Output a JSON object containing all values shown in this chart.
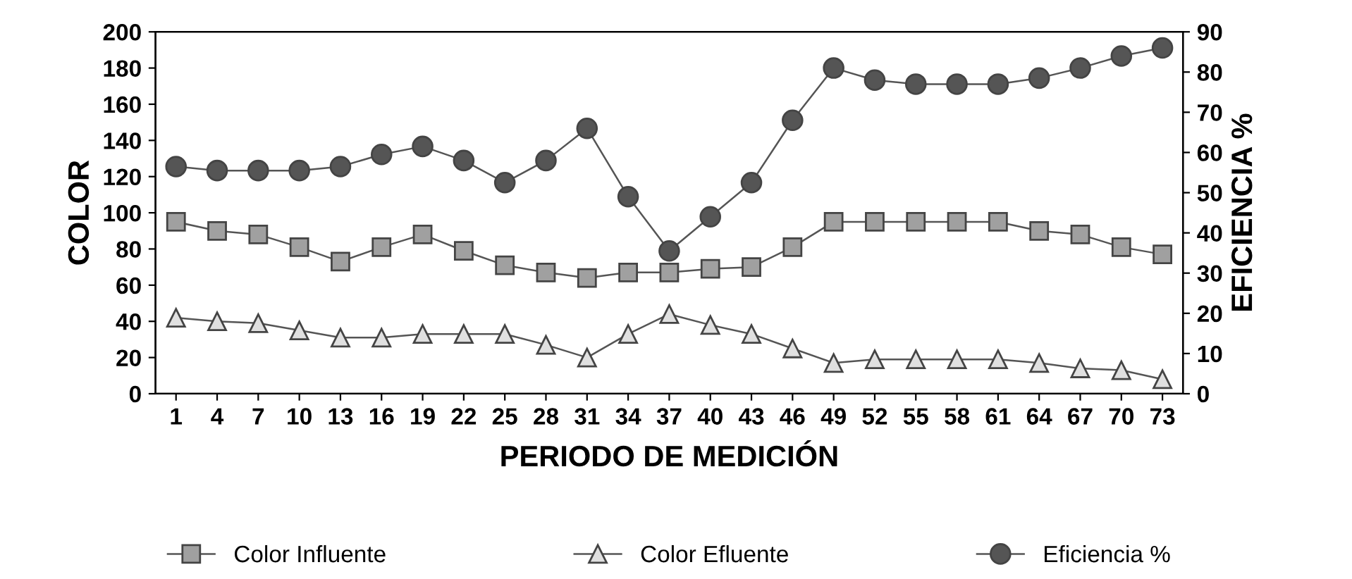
{
  "chart_data": {
    "type": "line",
    "xlabel": "PERIODO DE MEDICIÓN",
    "ylabel": "COLOR",
    "y2label": "EFICIENCIA %",
    "categories": [
      "1",
      "4",
      "7",
      "10",
      "13",
      "16",
      "19",
      "22",
      "25",
      "28",
      "31",
      "34",
      "37",
      "40",
      "43",
      "46",
      "49",
      "52",
      "55",
      "58",
      "61",
      "64",
      "67",
      "70",
      "73"
    ],
    "series": [
      {
        "name": "Color Influente",
        "color": "#a0a0a0",
        "marker": "square",
        "values": [
          95,
          90,
          88,
          81,
          73,
          81,
          88,
          79,
          71,
          67,
          64,
          67,
          67,
          69,
          70,
          81,
          95,
          95,
          95,
          95,
          95,
          90,
          88,
          81,
          77
        ]
      },
      {
        "name": "Color Efluente",
        "color": "#e0e0e0",
        "marker": "triangle",
        "values": [
          42,
          40,
          39,
          35,
          31,
          31,
          33,
          33,
          33,
          27,
          20,
          33,
          44,
          38,
          33,
          25,
          17,
          19,
          19,
          19,
          19,
          17,
          14,
          13,
          8
        ]
      },
      {
        "name": "Eficiencia %",
        "color": "#555555",
        "marker": "circle",
        "axis": "y2",
        "values": [
          56.5,
          55.5,
          55.5,
          55.5,
          56.5,
          59.5,
          61.5,
          58,
          52.5,
          58,
          66,
          49,
          35.5,
          44,
          52.5,
          68,
          81,
          78,
          77,
          77,
          77,
          78.5,
          81,
          84,
          86
        ]
      }
    ],
    "ylim": [
      0,
      200
    ],
    "yticks": [
      0,
      20,
      40,
      60,
      80,
      100,
      120,
      140,
      160,
      180,
      200
    ],
    "y2lim": [
      0,
      90
    ],
    "y2ticks": [
      0,
      10,
      20,
      30,
      40,
      50,
      60,
      70,
      80,
      90
    ],
    "grid": false,
    "legend": "bottom",
    "line_style": "solid"
  }
}
